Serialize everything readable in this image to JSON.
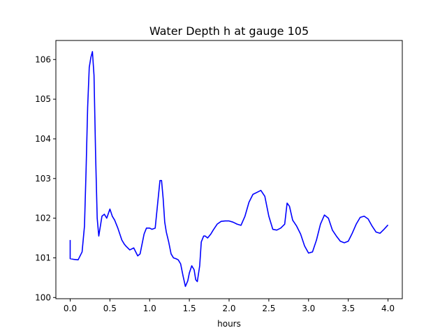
{
  "chart_data": {
    "type": "line",
    "title": "Water Depth h at gauge 105",
    "xlabel": "hours",
    "ylabel": "",
    "xlim": [
      -0.18,
      4.18
    ],
    "ylim": [
      99.97,
      106.48
    ],
    "grid": false,
    "xticks": [
      0.0,
      0.5,
      1.0,
      1.5,
      2.0,
      2.5,
      3.0,
      3.5,
      4.0
    ],
    "xtick_labels": [
      "0.0",
      "0.5",
      "1.0",
      "1.5",
      "2.0",
      "2.5",
      "3.0",
      "3.5",
      "4.0"
    ],
    "yticks": [
      100,
      101,
      102,
      103,
      104,
      105,
      106
    ],
    "ytick_labels": [
      "100",
      "101",
      "102",
      "103",
      "104",
      "105",
      "106"
    ],
    "series": [
      {
        "color": "#0000ff",
        "x": [
          0.0,
          0.0,
          0.05,
          0.1,
          0.15,
          0.18,
          0.2,
          0.22,
          0.24,
          0.26,
          0.28,
          0.3,
          0.32,
          0.34,
          0.36,
          0.38,
          0.4,
          0.43,
          0.46,
          0.5,
          0.53,
          0.56,
          0.58,
          0.6,
          0.65,
          0.68,
          0.7,
          0.75,
          0.8,
          0.85,
          0.88,
          0.9,
          0.93,
          0.96,
          1.0,
          1.03,
          1.07,
          1.1,
          1.13,
          1.15,
          1.17,
          1.19,
          1.21,
          1.24,
          1.27,
          1.3,
          1.33,
          1.36,
          1.39,
          1.42,
          1.45,
          1.48,
          1.5,
          1.53,
          1.56,
          1.58,
          1.6,
          1.63,
          1.65,
          1.68,
          1.7,
          1.73,
          1.77,
          1.8,
          1.85,
          1.9,
          1.95,
          2.0,
          2.05,
          2.1,
          2.15,
          2.2,
          2.25,
          2.3,
          2.35,
          2.4,
          2.45,
          2.5,
          2.55,
          2.6,
          2.65,
          2.7,
          2.73,
          2.76,
          2.8,
          2.85,
          2.9,
          2.95,
          3.0,
          3.05,
          3.1,
          3.15,
          3.2,
          3.25,
          3.3,
          3.35,
          3.4,
          3.45,
          3.5,
          3.55,
          3.6,
          3.65,
          3.7,
          3.75,
          3.8,
          3.85,
          3.9,
          3.95,
          4.0
        ],
        "y": [
          101.45,
          100.98,
          100.96,
          100.95,
          101.15,
          101.8,
          103.2,
          104.8,
          105.8,
          106.05,
          106.2,
          105.6,
          103.6,
          102.0,
          101.55,
          101.8,
          102.05,
          102.1,
          102.0,
          102.23,
          102.05,
          101.95,
          101.85,
          101.75,
          101.45,
          101.35,
          101.3,
          101.2,
          101.25,
          101.05,
          101.1,
          101.3,
          101.6,
          101.75,
          101.75,
          101.72,
          101.75,
          102.35,
          102.95,
          102.95,
          102.5,
          101.9,
          101.65,
          101.4,
          101.1,
          101.0,
          100.98,
          100.95,
          100.85,
          100.55,
          100.28,
          100.42,
          100.62,
          100.8,
          100.7,
          100.45,
          100.4,
          100.8,
          101.4,
          101.55,
          101.55,
          101.5,
          101.6,
          101.7,
          101.85,
          101.92,
          101.93,
          101.93,
          101.9,
          101.85,
          101.82,
          102.05,
          102.4,
          102.6,
          102.65,
          102.7,
          102.55,
          102.05,
          101.72,
          101.7,
          101.75,
          101.85,
          102.38,
          102.3,
          101.95,
          101.8,
          101.6,
          101.3,
          101.12,
          101.15,
          101.45,
          101.85,
          102.08,
          102.0,
          101.7,
          101.55,
          101.42,
          101.38,
          101.42,
          101.62,
          101.85,
          102.02,
          102.05,
          101.98,
          101.8,
          101.65,
          101.62,
          101.72,
          101.83
        ]
      }
    ]
  }
}
